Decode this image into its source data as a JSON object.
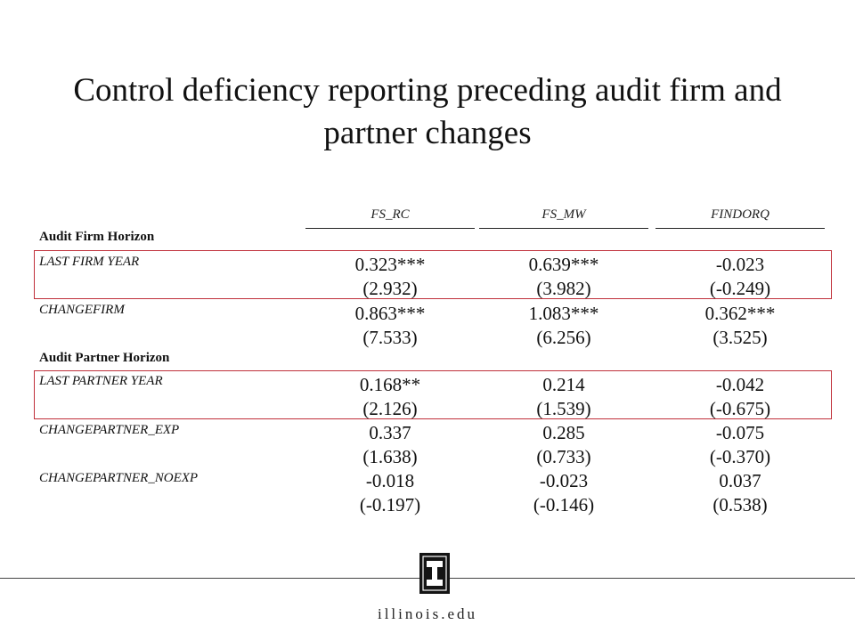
{
  "title": "Control deficiency reporting preceding audit firm and partner changes",
  "columns": [
    "FS_RC",
    "FS_MW",
    "FINDORQ"
  ],
  "sections": [
    {
      "heading": "Audit Firm Horizon",
      "rows": [
        {
          "label": "LAST FIRM YEAR",
          "values": [
            "0.323***",
            "0.639***",
            "-0.023"
          ],
          "tstats": [
            "(2.932)",
            "(3.982)",
            "(-0.249)"
          ],
          "highlighted": true
        },
        {
          "label": "CHANGEFIRM",
          "values": [
            "0.863***",
            "1.083***",
            "0.362***"
          ],
          "tstats": [
            "(7.533)",
            "(6.256)",
            "(3.525)"
          ],
          "highlighted": false
        }
      ]
    },
    {
      "heading": "Audit Partner Horizon",
      "rows": [
        {
          "label": "LAST PARTNER YEAR",
          "values": [
            "0.168**",
            "0.214",
            "-0.042"
          ],
          "tstats": [
            "(2.126)",
            "(1.539)",
            "(-0.675)"
          ],
          "highlighted": true
        },
        {
          "label": "CHANGEPARTNER_EXP",
          "values": [
            "0.337",
            "0.285",
            "-0.075"
          ],
          "tstats": [
            "(1.638)",
            "(0.733)",
            "(-0.370)"
          ],
          "highlighted": false
        },
        {
          "label": "CHANGEPARTNER_NOEXP",
          "values": [
            "-0.018",
            "-0.023",
            "0.037"
          ],
          "tstats": [
            "(-0.197)",
            "(-0.146)",
            "(0.538)"
          ],
          "highlighted": false
        }
      ]
    }
  ],
  "footer": {
    "url": "illinois.edu",
    "logo_icon": "block-i-icon"
  },
  "colors": {
    "highlight_border": "#c0303a",
    "logo_bg": "#141414"
  }
}
